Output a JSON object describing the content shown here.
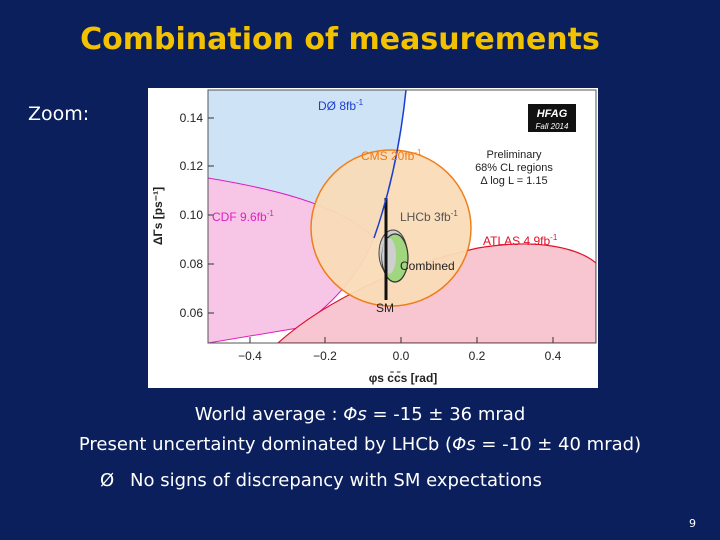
{
  "title": "Combination of measurements",
  "zoom_label": "Zoom:",
  "plot": {
    "y_axis_label": "ΔΓs [ps⁻¹]",
    "x_axis_label": "φs c̄c̄s [rad]",
    "y_ticks": [
      "0.14",
      "0.12",
      "0.10",
      "0.08",
      "0.06"
    ],
    "x_ticks": [
      "−0.4",
      "−0.2",
      "0.0",
      "0.2",
      "0.4"
    ],
    "hfag_badge_line1": "HFAG",
    "hfag_badge_line2": "Fall 2014",
    "preliminary_line1": "Preliminary",
    "preliminary_line2": "68% CL regions",
    "preliminary_line3": "Δ log L = 1.15",
    "labels": {
      "d0": "DØ 8fb",
      "d0_sup": "-1",
      "cms": "CMS 20fb",
      "cms_sup": "-1",
      "cdf": "CDF 9.6fb",
      "cdf_sup": "-1",
      "lhcb": "LHCb 3fb",
      "lhcb_sup": "-1",
      "atlas": "ATLAS 4.9fb",
      "atlas_sup": "-1",
      "combined": "Combined",
      "sm": "SM"
    },
    "colors": {
      "d0": "#cfe3f7",
      "cdf": "#f7c6e6",
      "cms": "#fadcb8",
      "atlas": "#f7c6d0",
      "combined": "#9fd67e",
      "d0_text": "#1a3fd0",
      "cdf_text": "#e01ec0",
      "cms_text": "#f07a10",
      "atlas_text": "#e0102a"
    }
  },
  "captions": {
    "line1_prefix": "World average : ",
    "line1_var": "Φs",
    "line1_value": " = -15 ± 36 mrad",
    "line2_prefix": "Present uncertainty dominated by LHCb (",
    "line2_var": "Φs",
    "line2_value": " = -10 ± 40 mrad)",
    "bullet_arrow": "Ø",
    "bullet_text": "No signs of discrepancy with SM expectations"
  },
  "page_number": "9"
}
